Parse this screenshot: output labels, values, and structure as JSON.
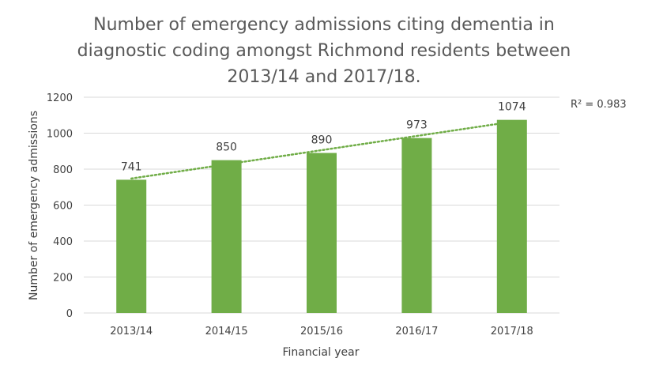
{
  "chart_data": {
    "type": "bar",
    "title_lines": [
      "Number of emergency admissions citing dementia in",
      "diagnostic coding amongst Richmond residents between",
      "2013/14 and 2017/18."
    ],
    "xlabel": "Financial year",
    "ylabel": "Number of emergency admissions",
    "categories": [
      "2013/14",
      "2014/15",
      "2015/16",
      "2016/17",
      "2017/18"
    ],
    "values": [
      741,
      850,
      890,
      973,
      1074
    ],
    "ylim": [
      0,
      1200
    ],
    "yticks": [
      "0",
      "200",
      "400",
      "600",
      "800",
      "1000",
      "1200"
    ],
    "data_labels": [
      "741",
      "850",
      "890",
      "973",
      "1074"
    ],
    "grid": true,
    "trendline": {
      "type": "linear",
      "style": "dotted",
      "r_squared_label": "R² = 0.983"
    },
    "colors": {
      "bar": "#70AD47",
      "trendline": "#70AD47",
      "grid": "#D9D9D9"
    }
  }
}
